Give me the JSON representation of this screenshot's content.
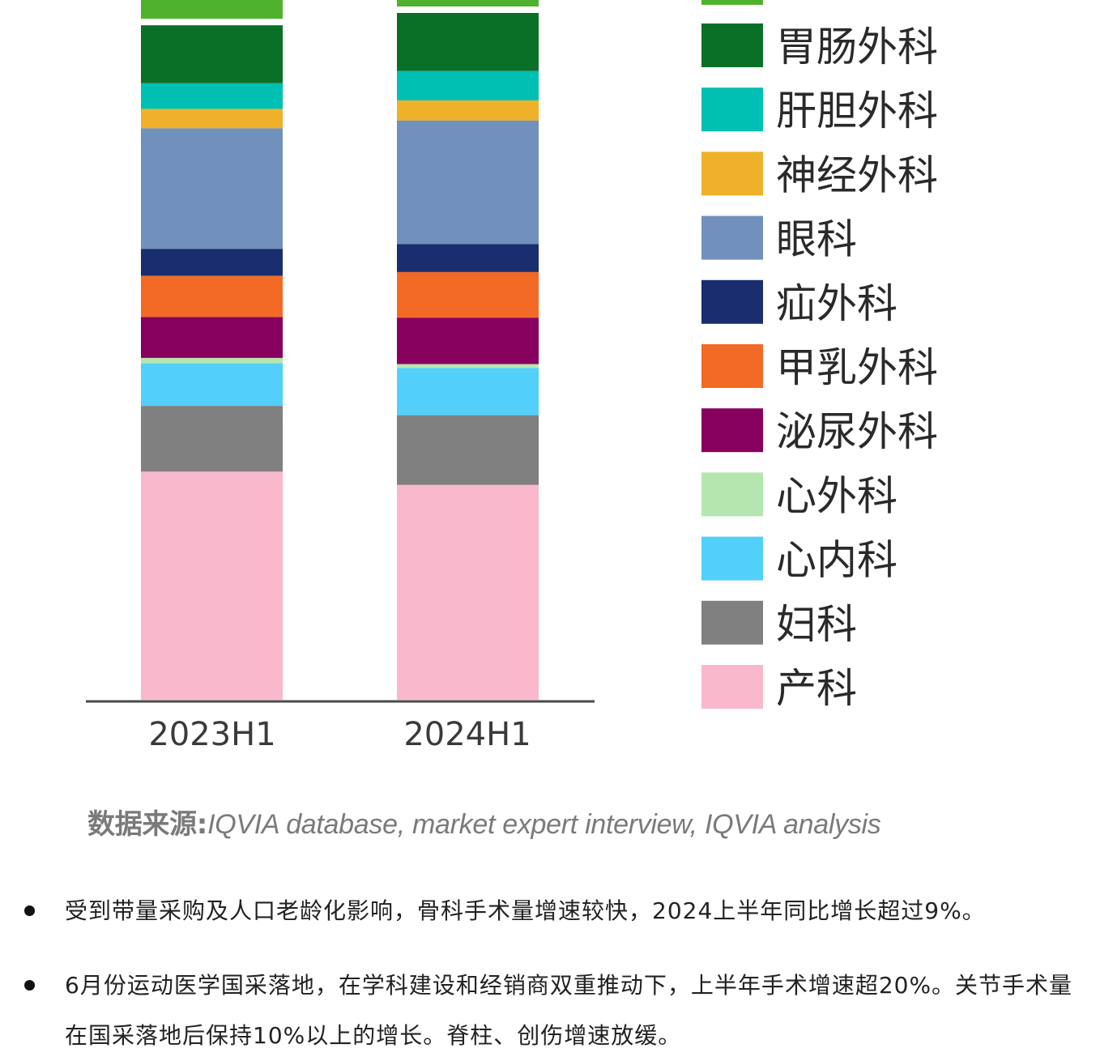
{
  "chart_data": {
    "type": "bar",
    "stacked": true,
    "categories": [
      "2023H1",
      "2024H1"
    ],
    "series": [
      {
        "name": "产科",
        "color": "#F9B8CC",
        "values": [
          29.5,
          27.8
        ]
      },
      {
        "name": "妇科",
        "color": "#808080",
        "values": [
          8.5,
          9.0
        ]
      },
      {
        "name": "心内科",
        "color": "#52D0F9",
        "values": [
          5.5,
          6.1
        ]
      },
      {
        "name": "心外科",
        "color": "#B6E6AF",
        "values": [
          0.7,
          0.5
        ]
      },
      {
        "name": "泌尿外科",
        "color": "#87005E",
        "values": [
          5.3,
          6.0
        ]
      },
      {
        "name": "甲乳外科",
        "color": "#F26A25",
        "values": [
          5.3,
          5.9
        ]
      },
      {
        "name": "疝外科",
        "color": "#1A2D6E",
        "values": [
          3.5,
          3.6
        ]
      },
      {
        "name": "眼科",
        "color": "#7290BC",
        "values": [
          15.6,
          16.0
        ]
      },
      {
        "name": "神经外科",
        "color": "#EFB12A",
        "values": [
          2.5,
          2.6
        ]
      },
      {
        "name": "肝胆外科",
        "color": "#00BFB3",
        "values": [
          3.3,
          3.8
        ]
      },
      {
        "name": "胃肠外科",
        "color": "#0A7028",
        "values": [
          7.5,
          7.5
        ]
      }
    ],
    "legend_position": "right",
    "grid": false
  },
  "source": {
    "prefix": "数据来源:",
    "text": "IQVIA database, market expert interview, IQVIA analysis"
  },
  "bullets": [
    "受到带量采购及人口老龄化影响，骨科手术量增速较快，2024上半年同比增长超过9%。",
    "6月份运动医学国采落地，在学科建设和经销商双重推动下，上半年手术增速超20%。关节手术量在国采落地后保持10%以上的增长。脊柱、创伤增速放缓。"
  ]
}
